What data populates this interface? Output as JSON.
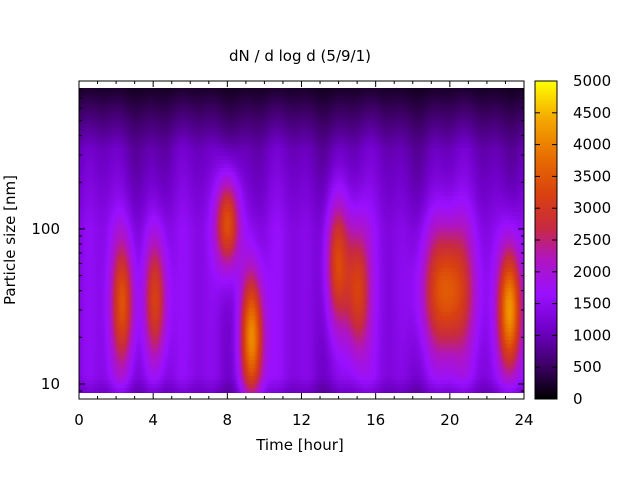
{
  "chart_data": {
    "type": "heatmap",
    "title": "dN / d log d (5/9/1)",
    "xlabel": "Time [hour]",
    "ylabel": "Particle size [nm]",
    "xlim": [
      0,
      24
    ],
    "xticks": [
      0,
      4,
      8,
      12,
      16,
      20,
      24
    ],
    "x_tick_labels": [
      "0",
      "4",
      "8",
      12,
      "16",
      "20",
      "24"
    ],
    "ylim_nm": [
      8,
      900
    ],
    "yscale": "log",
    "yticks": [
      10,
      100
    ],
    "y_tick_labels": [
      "10",
      "100"
    ],
    "colorbar": {
      "range": [
        0,
        5000
      ],
      "ticks": [
        0,
        500,
        1000,
        1500,
        2000,
        2500,
        3000,
        3500,
        4000,
        4500,
        5000
      ],
      "tick_labels": [
        "0",
        "500",
        "1000",
        "1500",
        "2000",
        "2500",
        "3000",
        "3500",
        "4000",
        "4500",
        "5000"
      ],
      "colormap": [
        "#000000",
        "#3a0060",
        "#7000c8",
        "#9a10ff",
        "#b015c0",
        "#c82a40",
        "#d84010",
        "#e86e00",
        "#f4a800",
        "#ffff00"
      ]
    },
    "background_level": 1100,
    "features": [
      {
        "t": 2.35,
        "d": 33,
        "peak": 3100
      },
      {
        "t": 4.1,
        "d": 35,
        "peak": 3000
      },
      {
        "t": 8.0,
        "d": 110,
        "peak": 3400
      },
      {
        "t": 9.3,
        "d": 20,
        "peak": 3900
      },
      {
        "t": 13.9,
        "d": 60,
        "peak": 3000
      },
      {
        "t": 15.0,
        "d": 40,
        "peak": 2900
      },
      {
        "t": 19.8,
        "d": 40,
        "peak": 3300
      },
      {
        "t": 23.2,
        "d": 30,
        "peak": 4200
      }
    ]
  }
}
